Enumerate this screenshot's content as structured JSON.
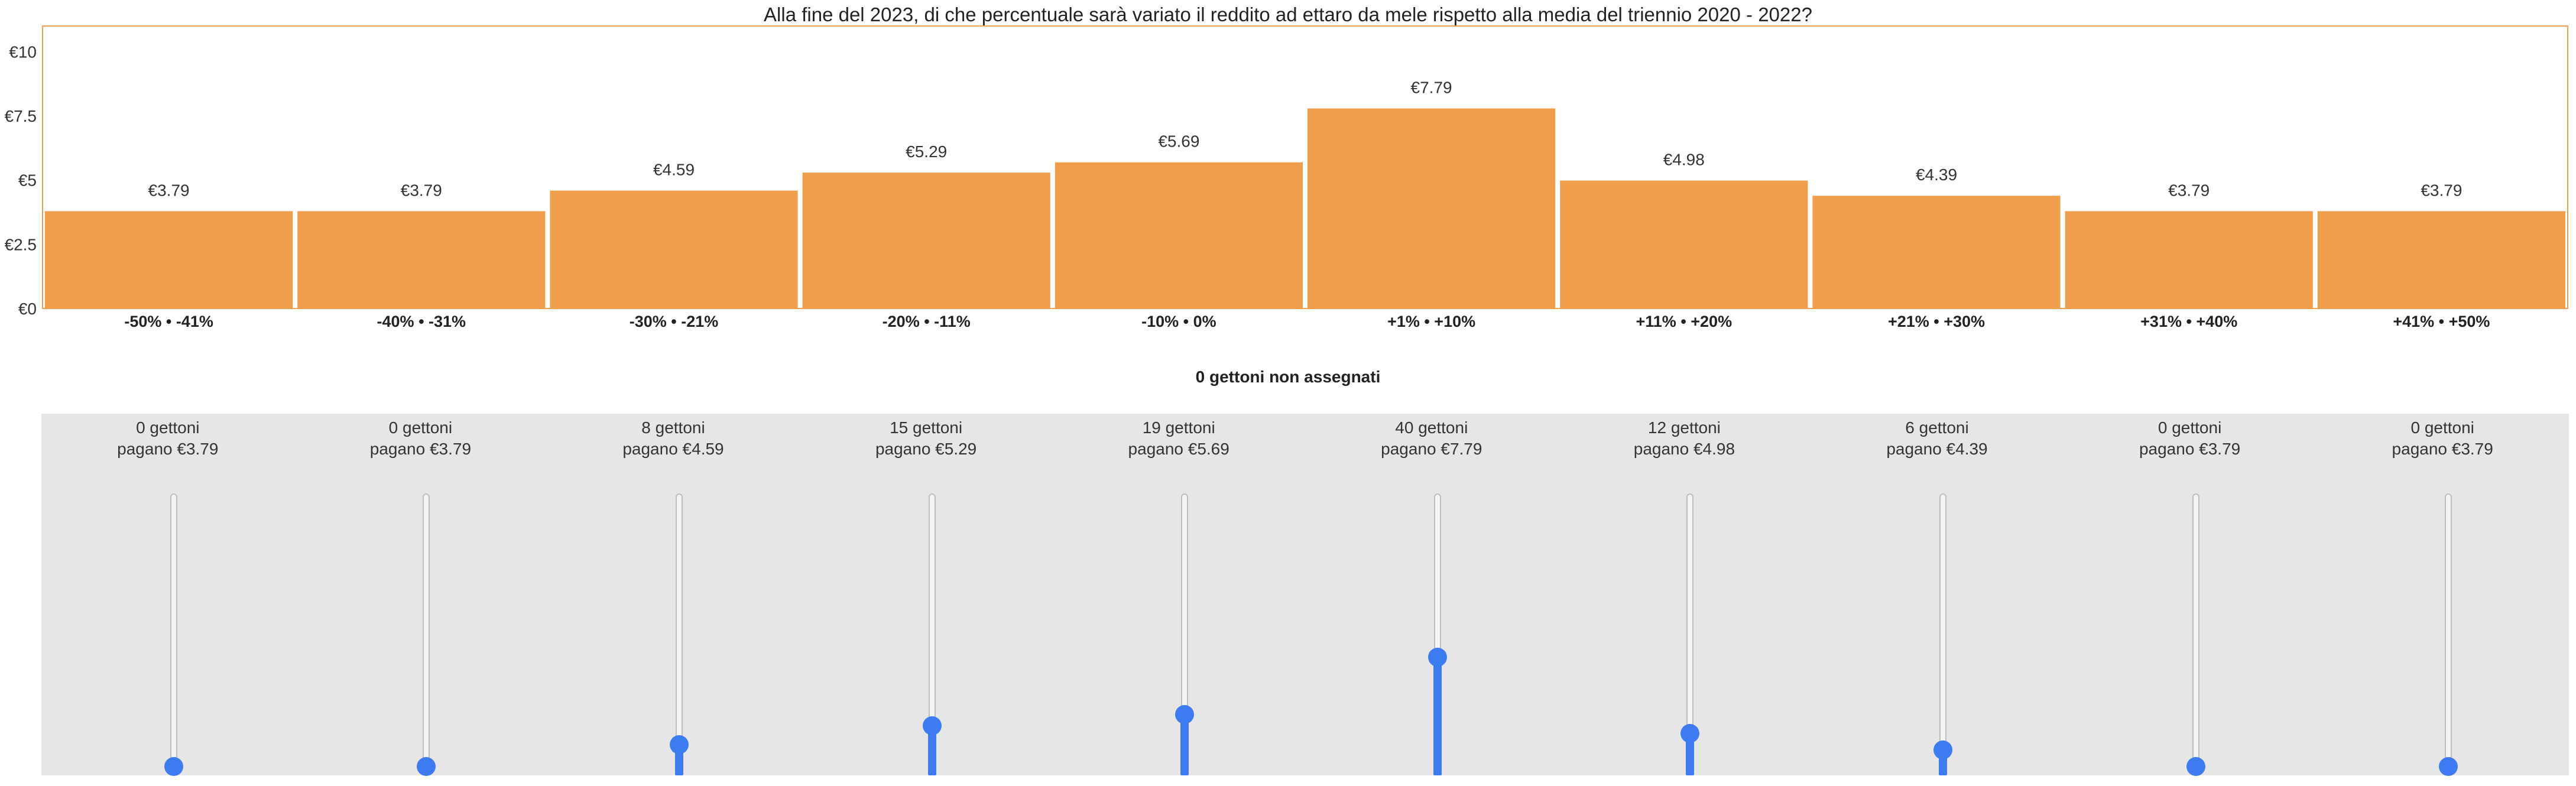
{
  "chart_data": {
    "type": "bar",
    "title": "Alla fine del 2023, di che percentuale sarà variato il reddito ad ettaro da mele rispetto alla media del triennio 2020 - 2022?",
    "categories": [
      "-50% • -41%",
      "-40% • -31%",
      "-30% • -21%",
      "-20% • -11%",
      "-10% • 0%",
      "+1% • +10%",
      "+11% • +20%",
      "+21% • +30%",
      "+31% • +40%",
      "+41% • +50%"
    ],
    "values": [
      3.79,
      3.79,
      4.59,
      5.29,
      5.69,
      7.79,
      4.98,
      4.39,
      3.79,
      3.79
    ],
    "value_labels": [
      "€3.79",
      "€3.79",
      "€4.59",
      "€5.29",
      "€5.69",
      "€7.79",
      "€4.98",
      "€4.39",
      "€3.79",
      "€3.79"
    ],
    "yticks": [
      0,
      2.5,
      5,
      7.5,
      10
    ],
    "ytick_labels": [
      "€0",
      "€2.5",
      "€5",
      "€7.5",
      "€10"
    ],
    "ylim": [
      0,
      11
    ],
    "xlabel": "",
    "ylabel": "",
    "grid": false,
    "bar_color": "#ef9d4a",
    "frame_color": "#f0a050"
  },
  "allocation": {
    "unassigned_label": "0 gettoni non assegnati",
    "max_tokens": 100,
    "slot_color": "#3d7cf0",
    "slots": [
      {
        "tokens_text": "0 gettoni",
        "pay_text": "pagano €3.79",
        "tokens": 0
      },
      {
        "tokens_text": "0 gettoni",
        "pay_text": "pagano €3.79",
        "tokens": 0
      },
      {
        "tokens_text": "8 gettoni",
        "pay_text": "pagano €4.59",
        "tokens": 8
      },
      {
        "tokens_text": "15 gettoni",
        "pay_text": "pagano €5.29",
        "tokens": 15
      },
      {
        "tokens_text": "19 gettoni",
        "pay_text": "pagano €5.69",
        "tokens": 19
      },
      {
        "tokens_text": "40 gettoni",
        "pay_text": "pagano €7.79",
        "tokens": 40
      },
      {
        "tokens_text": "12 gettoni",
        "pay_text": "pagano €4.98",
        "tokens": 12
      },
      {
        "tokens_text": "6 gettoni",
        "pay_text": "pagano €4.39",
        "tokens": 6
      },
      {
        "tokens_text": "0 gettoni",
        "pay_text": "pagano €3.79",
        "tokens": 0
      },
      {
        "tokens_text": "0 gettoni",
        "pay_text": "pagano €3.79",
        "tokens": 0
      }
    ]
  }
}
